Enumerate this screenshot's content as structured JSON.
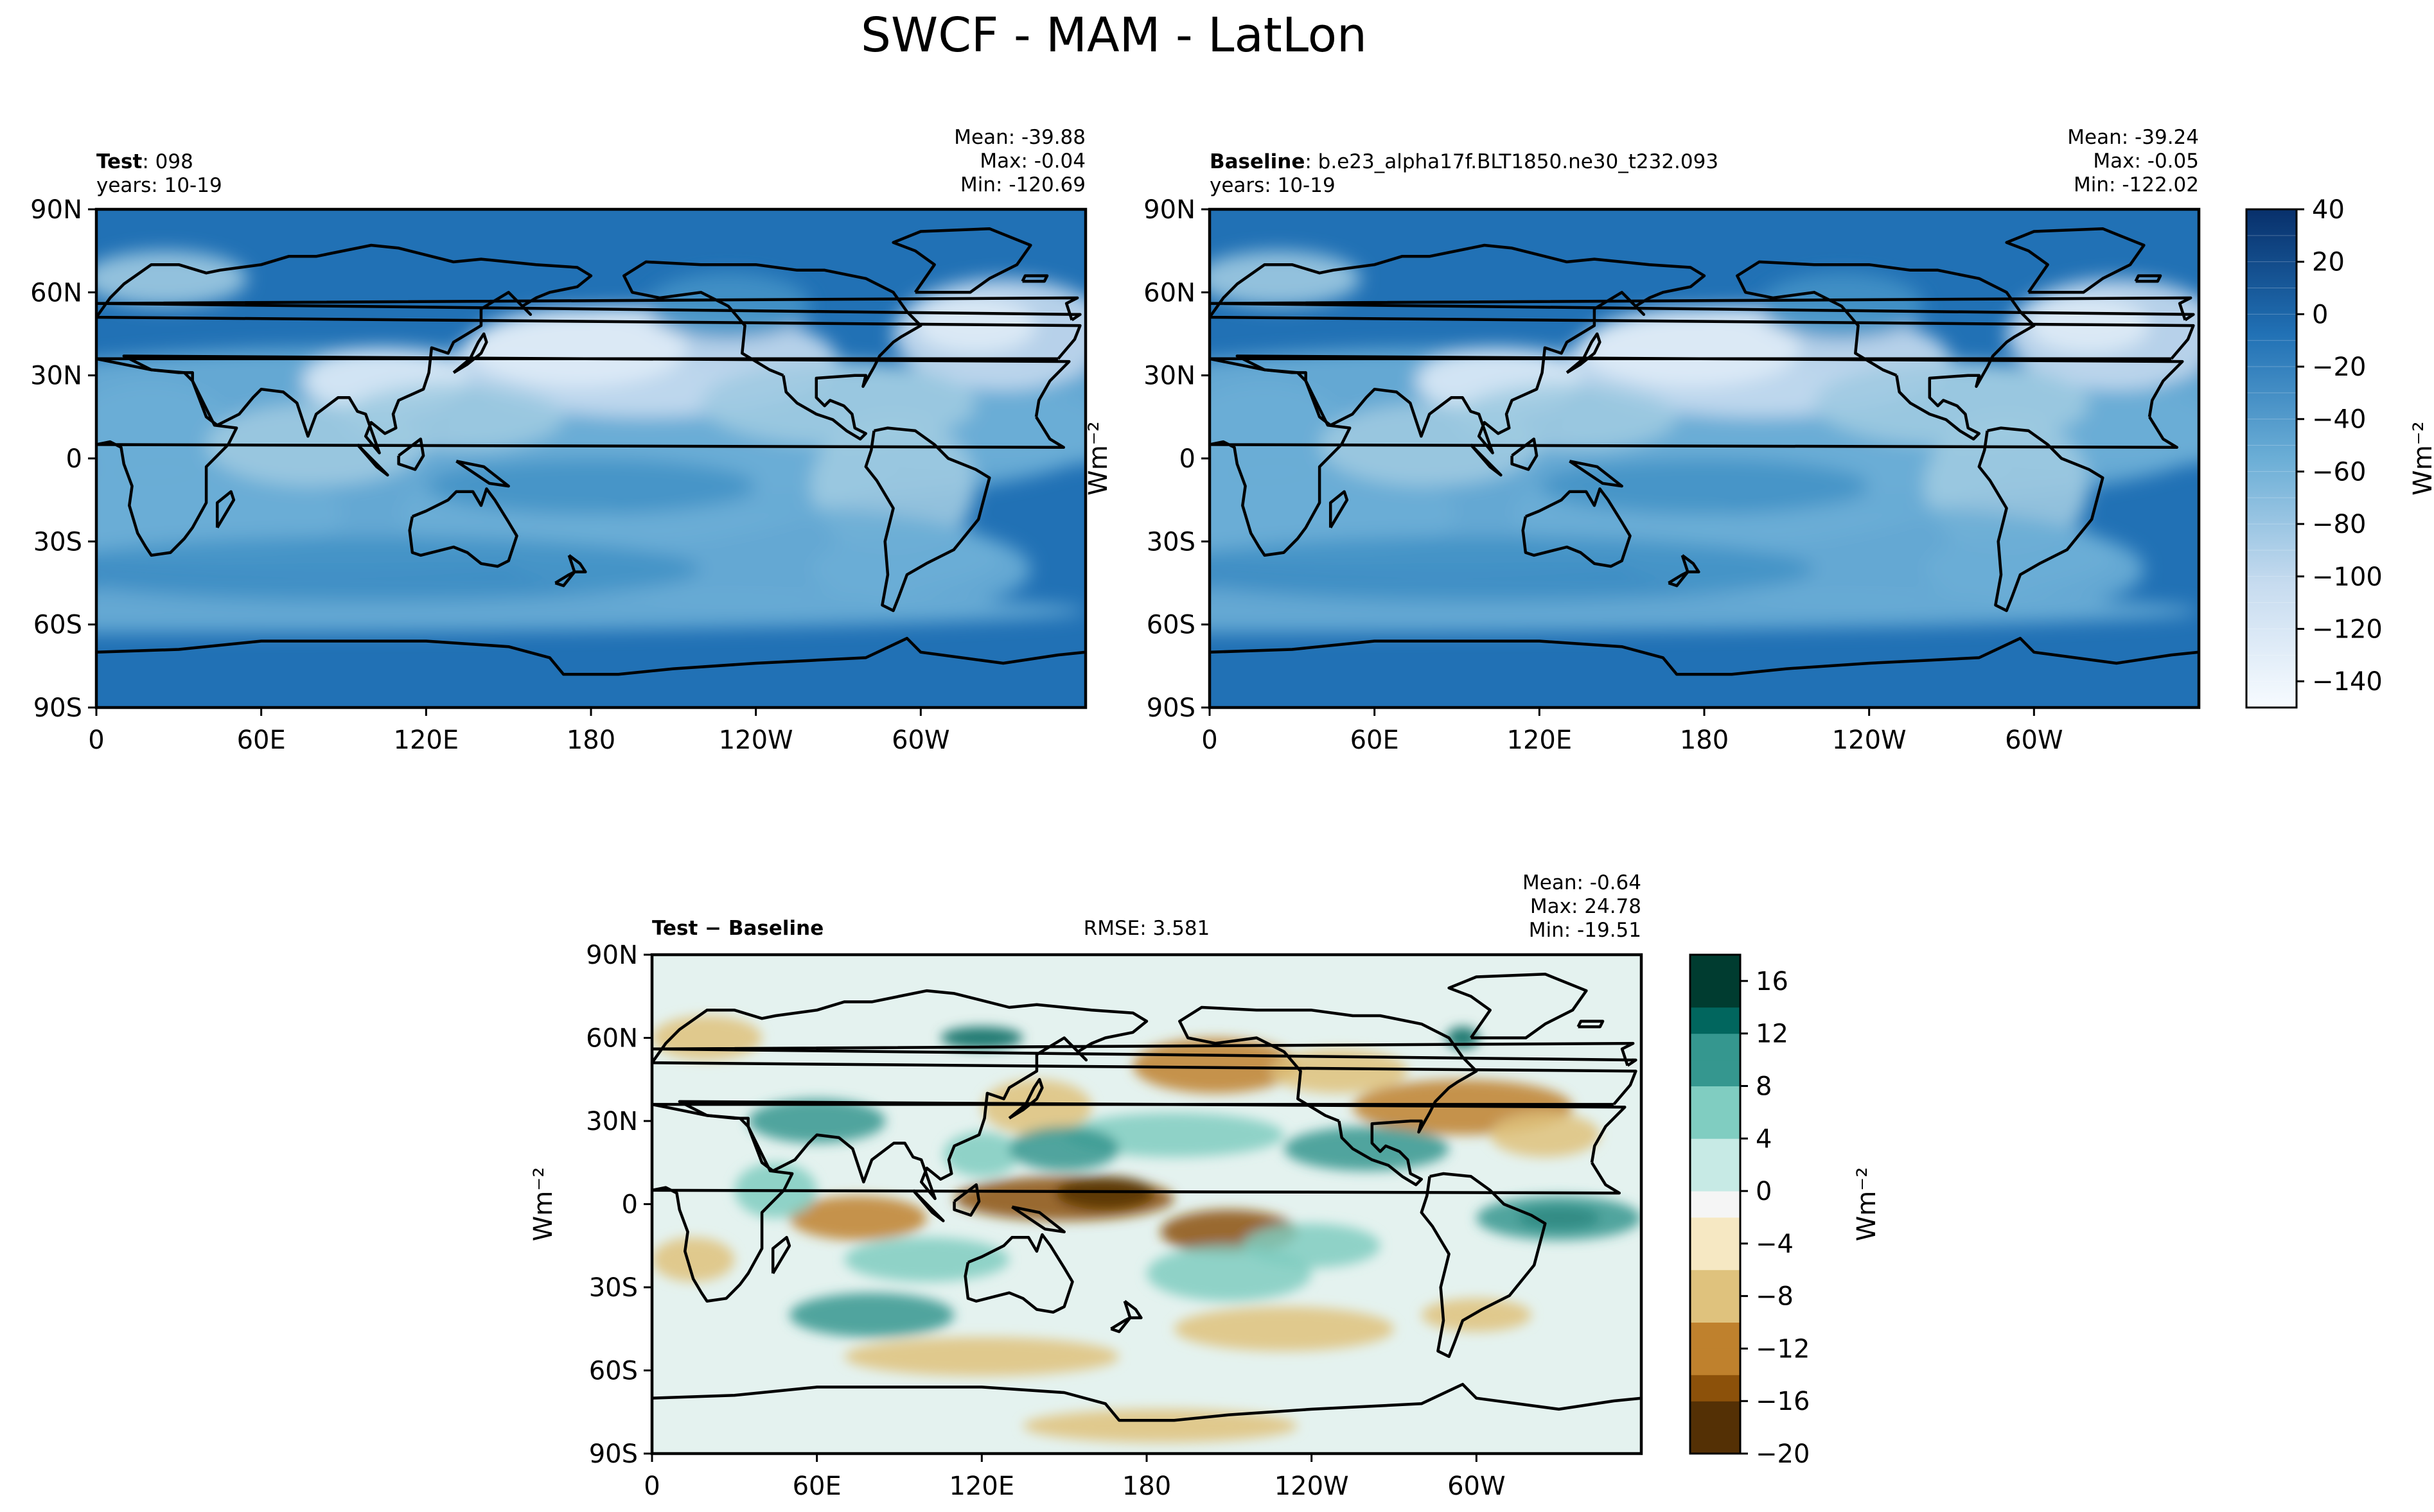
{
  "figure_title": "SWCF - MAM - LatLon",
  "colors": {
    "blues": [
      "#f7fbff",
      "#deebf7",
      "#c6dbef",
      "#9ecae1",
      "#6baed6",
      "#4292c6",
      "#2171b5",
      "#08519c",
      "#08306b"
    ],
    "brbg": [
      "#543005",
      "#8c510a",
      "#bf812d",
      "#dfc27d",
      "#f6e8c3",
      "#f5f5f5",
      "#c7eae5",
      "#80cdc1",
      "#35978f",
      "#01665e",
      "#003c30"
    ],
    "land_outline": "#000000"
  },
  "chart_data": [
    {
      "type": "heatmap",
      "panel": "test",
      "title_bold": "Test",
      "title_rest": ": 098",
      "subtitle": "years: 10-19",
      "stats": [
        "Mean: -39.88",
        "Max: -0.04",
        "Min: -120.69"
      ],
      "xticks": [
        "0",
        "60E",
        "120E",
        "180",
        "120W",
        "60W"
      ],
      "xtick_values": [
        0,
        60,
        120,
        180,
        240,
        300
      ],
      "yticks": [
        "90N",
        "60N",
        "30N",
        "0",
        "30S",
        "60S",
        "90S"
      ],
      "ytick_values": [
        90,
        60,
        30,
        0,
        -30,
        -60,
        -90
      ],
      "xlim": [
        0,
        360
      ],
      "ylim": [
        -90,
        90
      ],
      "colormap": "Blues",
      "value_range": [
        -150,
        40
      ],
      "mean": -39.88,
      "max": -0.04,
      "min": -120.69
    },
    {
      "type": "heatmap",
      "panel": "baseline",
      "title_bold": "Baseline",
      "title_rest": ": b.e23_alpha17f.BLT1850.ne30_t232.093",
      "subtitle": "years: 10-19",
      "stats": [
        "Mean: -39.24",
        "Max: -0.05",
        "Min: -122.02"
      ],
      "xticks": [
        "0",
        "60E",
        "120E",
        "180",
        "120W",
        "60W"
      ],
      "xtick_values": [
        0,
        60,
        120,
        180,
        240,
        300
      ],
      "yticks": [
        "90N",
        "60N",
        "30N",
        "0",
        "30S",
        "60S",
        "90S"
      ],
      "ytick_values": [
        90,
        60,
        30,
        0,
        -30,
        -60,
        -90
      ],
      "xlim": [
        0,
        360
      ],
      "ylim": [
        -90,
        90
      ],
      "ylabel": "Wm⁻²",
      "colormap": "Blues",
      "value_range": [
        -150,
        40
      ],
      "mean": -39.24,
      "max": -0.05,
      "min": -122.02,
      "colorbar": {
        "ticks": [
          "40",
          "20",
          "0",
          "−20",
          "−40",
          "−60",
          "−80",
          "−100",
          "−120",
          "−140"
        ],
        "tick_values": [
          40,
          20,
          0,
          -20,
          -40,
          -60,
          -80,
          -100,
          -120,
          -140
        ],
        "range": [
          -150,
          40
        ],
        "levels": 19,
        "label": "Wm⁻²"
      }
    },
    {
      "type": "heatmap",
      "panel": "difference",
      "title_bold": "Test − Baseline",
      "rmse": "RMSE: 3.581",
      "stats": [
        "Mean: -0.64",
        "Max: 24.78",
        "Min: -19.51"
      ],
      "xticks": [
        "0",
        "60E",
        "120E",
        "180",
        "120W",
        "60W"
      ],
      "xtick_values": [
        0,
        60,
        120,
        180,
        240,
        300
      ],
      "yticks": [
        "90N",
        "60N",
        "30N",
        "0",
        "30S",
        "60S",
        "90S"
      ],
      "ytick_values": [
        90,
        60,
        30,
        0,
        -30,
        -60,
        -90
      ],
      "xlim": [
        0,
        360
      ],
      "ylim": [
        -90,
        90
      ],
      "ylabel": "Wm⁻²",
      "colormap": "BrBG",
      "value_range": [
        -20,
        18
      ],
      "mean": -0.64,
      "max": 24.78,
      "min": -19.51,
      "colorbar": {
        "ticks": [
          "16",
          "12",
          "8",
          "4",
          "0",
          "−4",
          "−8",
          "−12",
          "−16",
          "−20"
        ],
        "tick_values": [
          16,
          12,
          8,
          4,
          0,
          -4,
          -8,
          -12,
          -16,
          -20
        ],
        "range": [
          -20,
          18
        ],
        "levels": 19,
        "label": "Wm⁻²"
      }
    }
  ]
}
